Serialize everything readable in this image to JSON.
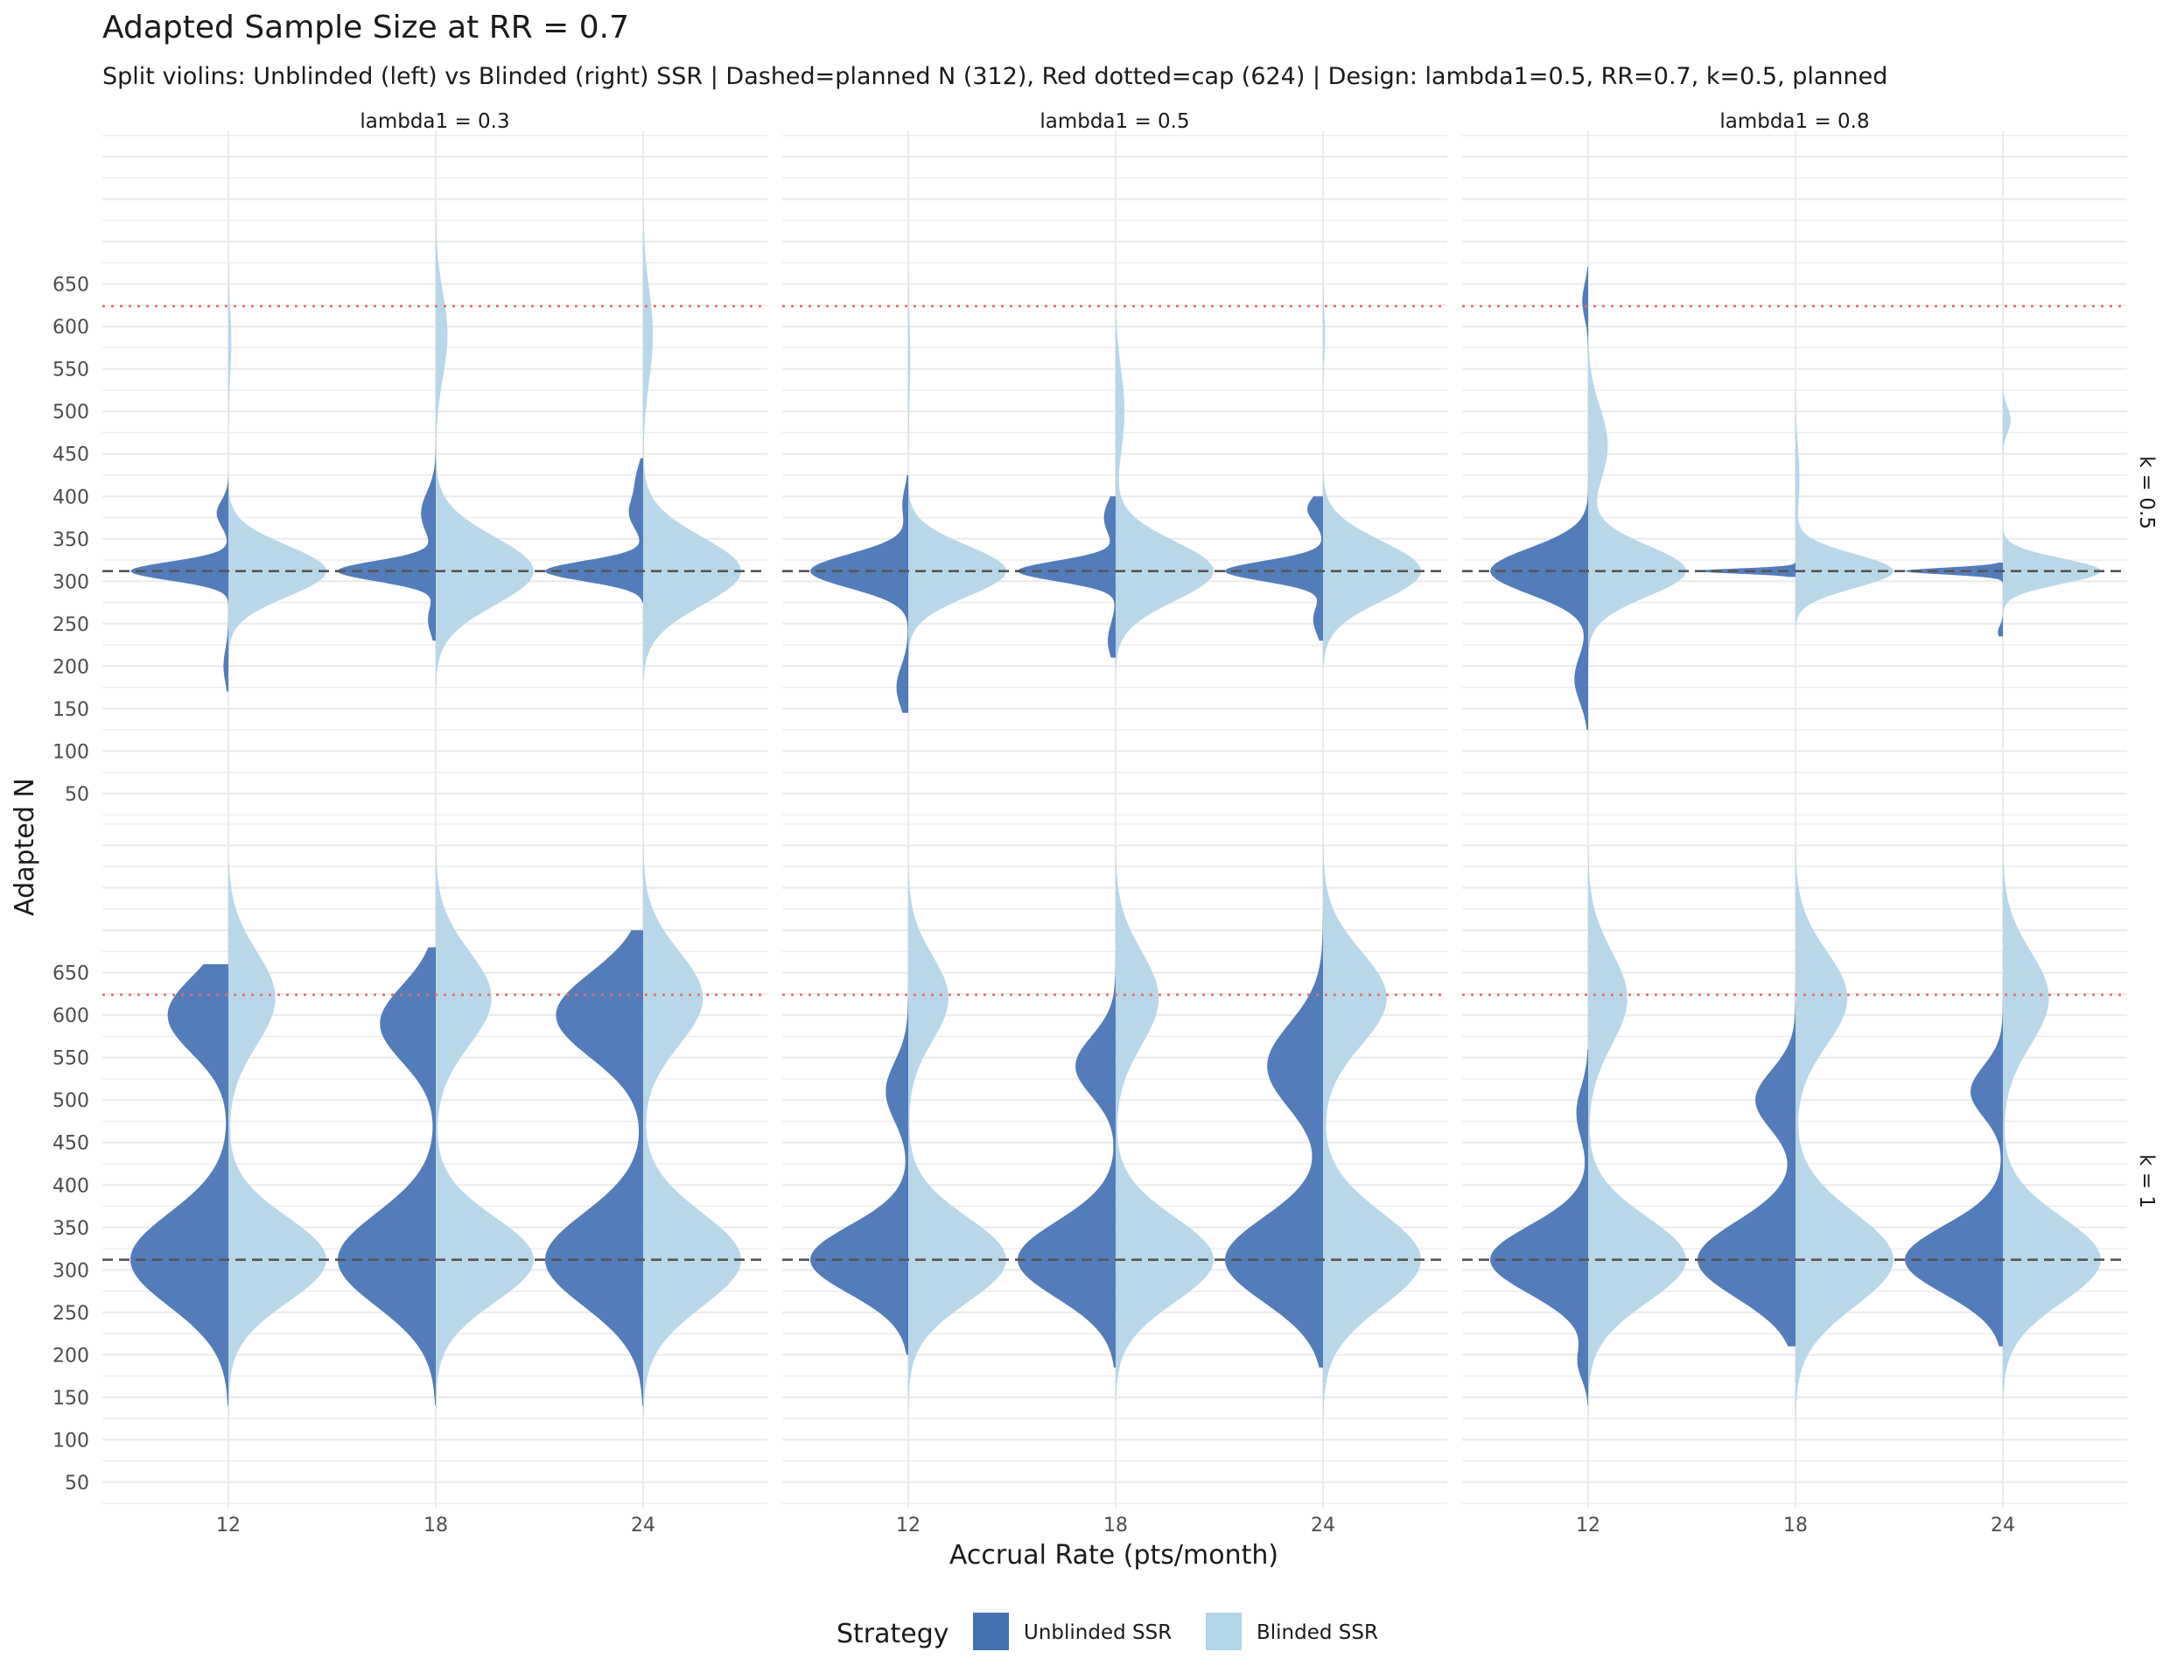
{
  "chart_data": {
    "type": "violin",
    "title": "Adapted Sample Size at RR = 0.7",
    "subtitle": "Split violins: Unblinded (left) vs Blinded (right) SSR | Dashed=planned N (312), Red dotted=cap (624) | Design: lambda1=0.5, RR=0.7, k=0.5, planned",
    "xlabel": "Accrual Rate (pts/month)",
    "ylabel": "Adapted N",
    "ylim": [
      20,
      830
    ],
    "y_ticks": [
      50,
      100,
      150,
      200,
      250,
      300,
      350,
      400,
      450,
      500,
      550,
      600,
      650
    ],
    "y_tick_labels": [
      "50",
      "100",
      "150",
      "200",
      "250",
      "300",
      "350",
      "400",
      "450",
      "500",
      "550",
      "600",
      "650"
    ],
    "x_categories": [
      "12",
      "18",
      "24"
    ],
    "column_facets": [
      "lambda1 = 0.3",
      "lambda1 = 0.5",
      "lambda1 = 0.8"
    ],
    "row_facets": [
      "k = 0.5",
      "k = 1"
    ],
    "planned_n": 312,
    "cap": 624,
    "legend": {
      "title": "Strategy",
      "position": "bottom",
      "entries": [
        {
          "name": "Unblinded SSR",
          "color": "#4472b4"
        },
        {
          "name": "Blinded SSR",
          "color": "#b2d5e7"
        }
      ]
    },
    "colors": {
      "unblinded": "#4472b4",
      "blinded": "#b2d5e7",
      "planned_line": "#555555",
      "cap_line": "#e86a6a",
      "grid": "#ebebeb"
    },
    "series": [
      {
        "name": "Unblinded SSR",
        "side": "left",
        "panels": [
          [
            {
              "x": "12",
              "min": 170,
              "max": 430,
              "modes": [
                [
                  312,
                  11,
                  1.0
                ],
                [
                  380,
                  15,
                  0.12
                ],
                [
                  200,
                  20,
                  0.05
                ]
              ]
            },
            {
              "x": "18",
              "min": 230,
              "max": 470,
              "modes": [
                [
                  312,
                  12,
                  1.0
                ],
                [
                  380,
                  25,
                  0.15
                ],
                [
                  255,
                  18,
                  0.08
                ]
              ]
            },
            {
              "x": "24",
              "min": 275,
              "max": 445,
              "modes": [
                [
                  312,
                  12,
                  1.0
                ],
                [
                  380,
                  18,
                  0.14
                ],
                [
                  420,
                  18,
                  0.07
                ]
              ]
            }
          ],
          [
            {
              "x": "12",
              "min": 145,
              "max": 425,
              "modes": [
                [
                  312,
                  20,
                  1.0
                ],
                [
                  175,
                  25,
                  0.12
                ],
                [
                  390,
                  20,
                  0.06
                ]
              ]
            },
            {
              "x": "18",
              "min": 210,
              "max": 400,
              "modes": [
                [
                  312,
                  12,
                  1.0
                ],
                [
                  375,
                  20,
                  0.12
                ],
                [
                  230,
                  20,
                  0.08
                ]
              ]
            },
            {
              "x": "24",
              "min": 230,
              "max": 400,
              "modes": [
                [
                  312,
                  12,
                  1.0
                ],
                [
                  385,
                  15,
                  0.16
                ],
                [
                  255,
                  18,
                  0.1
                ]
              ]
            }
          ],
          [
            {
              "x": "12",
              "min": 125,
              "max": 670,
              "modes": [
                [
                  312,
                  27,
                  1.0
                ],
                [
                  185,
                  28,
                  0.14
                ],
                [
                  630,
                  20,
                  0.06
                ]
              ]
            },
            {
              "x": "18",
              "min": 305,
              "max": 322,
              "modes": [
                [
                  312,
                  3,
                  1.0
                ]
              ]
            },
            {
              "x": "24",
              "min": 235,
              "max": 322,
              "modes": [
                [
                  312,
                  4,
                  1.0
                ],
                [
                  240,
                  8,
                  0.05
                ]
              ]
            }
          ]
        ]
      },
      {
        "name": "Unblinded SSR",
        "side": "left",
        "panels": [
          [
            {
              "x": "12",
              "min": 140,
              "max": 660,
              "modes": [
                [
                  312,
                  55,
                  1.0
                ],
                [
                  600,
                  45,
                  0.62
                ]
              ]
            },
            {
              "x": "18",
              "min": 140,
              "max": 680,
              "modes": [
                [
                  312,
                  55,
                  1.0
                ],
                [
                  590,
                  45,
                  0.57
                ]
              ]
            },
            {
              "x": "24",
              "min": 140,
              "max": 700,
              "modes": [
                [
                  312,
                  55,
                  1.0
                ],
                [
                  600,
                  50,
                  0.89
                ]
              ]
            }
          ],
          [
            {
              "x": "12",
              "min": 200,
              "max": 650,
              "modes": [
                [
                  312,
                  40,
                  1.0
                ],
                [
                  510,
                  35,
                  0.23
                ]
              ]
            },
            {
              "x": "18",
              "min": 185,
              "max": 680,
              "modes": [
                [
                  312,
                  45,
                  1.0
                ],
                [
                  540,
                  35,
                  0.41
                ]
              ]
            },
            {
              "x": "24",
              "min": 185,
              "max": 720,
              "modes": [
                [
                  312,
                  50,
                  1.0
                ],
                [
                  540,
                  50,
                  0.57
                ]
              ]
            }
          ],
          [
            {
              "x": "12",
              "min": 140,
              "max": 560,
              "modes": [
                [
                  312,
                  40,
                  1.0
                ],
                [
                  485,
                  30,
                  0.12
                ],
                [
                  190,
                  20,
                  0.1
                ]
              ]
            },
            {
              "x": "18",
              "min": 210,
              "max": 640,
              "modes": [
                [
                  312,
                  45,
                  1.0
                ],
                [
                  500,
                  35,
                  0.41
                ]
              ]
            },
            {
              "x": "24",
              "min": 210,
              "max": 640,
              "modes": [
                [
                  312,
                  40,
                  1.0
                ],
                [
                  510,
                  30,
                  0.33
                ]
              ]
            }
          ]
        ]
      },
      {
        "name": "Blinded SSR",
        "side": "right",
        "panels": [
          [
            {
              "x": "12",
              "min": 165,
              "max": 690,
              "modes": [
                [
                  312,
                  30,
                  1.0
                ],
                [
                  580,
                  40,
                  0.03
                ]
              ]
            },
            {
              "x": "18",
              "min": 170,
              "max": 800,
              "modes": [
                [
                  312,
                  40,
                  1.0
                ],
                [
                  590,
                  50,
                  0.12
                ]
              ]
            },
            {
              "x": "24",
              "min": 185,
              "max": 800,
              "modes": [
                [
                  312,
                  40,
                  1.0
                ],
                [
                  590,
                  55,
                  0.1
                ]
              ]
            }
          ],
          [
            {
              "x": "12",
              "min": 120,
              "max": 690,
              "modes": [
                [
                  312,
                  30,
                  1.0
                ],
                [
                  560,
                  50,
                  0.02
                ]
              ]
            },
            {
              "x": "18",
              "min": 145,
              "max": 690,
              "modes": [
                [
                  312,
                  35,
                  1.0
                ],
                [
                  500,
                  50,
                  0.09
                ]
              ]
            },
            {
              "x": "24",
              "min": 200,
              "max": 670,
              "modes": [
                [
                  312,
                  35,
                  1.0
                ],
                [
                  590,
                  30,
                  0.02
                ]
              ]
            }
          ],
          [
            {
              "x": "12",
              "min": 135,
              "max": 690,
              "modes": [
                [
                  312,
                  30,
                  1.0
                ],
                [
                  460,
                  45,
                  0.2
                ]
              ]
            },
            {
              "x": "18",
              "min": 210,
              "max": 550,
              "modes": [
                [
                  312,
                  20,
                  1.0
                ],
                [
                  420,
                  40,
                  0.04
                ]
              ]
            },
            {
              "x": "24",
              "min": 215,
              "max": 540,
              "modes": [
                [
                  312,
                  15,
                  1.0
                ],
                [
                  490,
                  15,
                  0.08
                ]
              ]
            }
          ]
        ]
      },
      {
        "name": "Blinded SSR",
        "side": "right",
        "panels": [
          [
            {
              "x": "12",
              "min": 110,
              "max": 780,
              "modes": [
                [
                  312,
                  50,
                  1.0
                ],
                [
                  620,
                  55,
                  0.48
                ]
              ]
            },
            {
              "x": "18",
              "min": 130,
              "max": 800,
              "modes": [
                [
                  312,
                  50,
                  1.0
                ],
                [
                  620,
                  55,
                  0.57
                ]
              ]
            },
            {
              "x": "24",
              "min": 130,
              "max": 820,
              "modes": [
                [
                  312,
                  55,
                  1.0
                ],
                [
                  620,
                  55,
                  0.61
                ]
              ]
            }
          ],
          [
            {
              "x": "12",
              "min": 130,
              "max": 800,
              "modes": [
                [
                  312,
                  50,
                  1.0
                ],
                [
                  620,
                  50,
                  0.41
                ]
              ]
            },
            {
              "x": "18",
              "min": 145,
              "max": 800,
              "modes": [
                [
                  312,
                  50,
                  1.0
                ],
                [
                  620,
                  55,
                  0.44
                ]
              ]
            },
            {
              "x": "24",
              "min": 120,
              "max": 810,
              "modes": [
                [
                  312,
                  55,
                  1.0
                ],
                [
                  620,
                  55,
                  0.65
                ]
              ]
            }
          ],
          [
            {
              "x": "12",
              "min": 80,
              "max": 800,
              "modes": [
                [
                  312,
                  50,
                  1.0
                ],
                [
                  620,
                  55,
                  0.4
                ]
              ]
            },
            {
              "x": "18",
              "min": 80,
              "max": 810,
              "modes": [
                [
                  312,
                  55,
                  1.0
                ],
                [
                  620,
                  55,
                  0.53
                ]
              ]
            },
            {
              "x": "24",
              "min": 100,
              "max": 810,
              "modes": [
                [
                  312,
                  50,
                  1.0
                ],
                [
                  620,
                  55,
                  0.47
                ]
              ]
            }
          ]
        ]
      }
    ]
  }
}
